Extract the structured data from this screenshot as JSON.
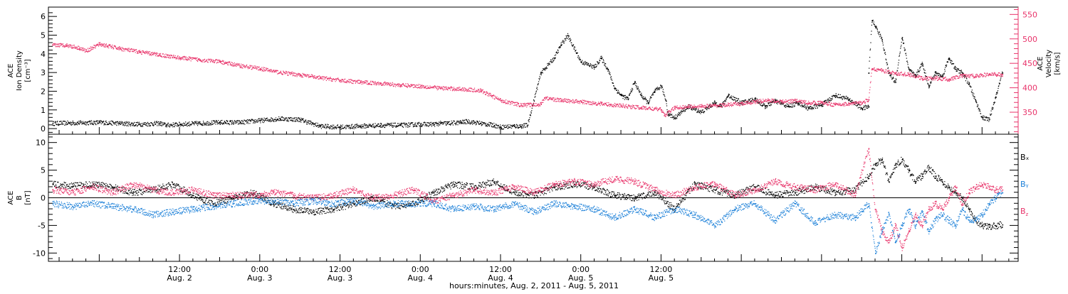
{
  "chart_data": [
    {
      "type": "scatter",
      "panel": "top",
      "ylabel_left": [
        "ACE",
        "Ion Density",
        "[cm⁻³]"
      ],
      "ylabel_right": [
        "ACE",
        "Velocity",
        "[km/s]"
      ],
      "yticks_left": [
        "0",
        "1",
        "2",
        "3",
        "4",
        "5",
        "6"
      ],
      "ylim_left": [
        -0.3,
        6.5
      ],
      "yticks_right": [
        "350",
        "400",
        "450",
        "500",
        "550"
      ],
      "ylim_right": [
        305,
        565
      ],
      "grid": false,
      "series": [
        {
          "axis": "left",
          "color": "#000000",
          "x": [
            -7,
            0,
            3,
            6,
            9,
            10,
            12,
            15,
            18,
            21,
            24,
            27,
            30,
            33,
            36,
            39,
            42,
            45,
            48,
            50,
            51,
            52,
            54,
            55,
            57,
            59,
            60,
            62,
            63,
            64,
            66,
            68,
            69,
            70,
            72,
            74,
            75,
            76,
            77,
            78,
            79,
            80,
            81,
            82,
            83,
            84,
            84.7,
            85,
            86,
            88,
            90,
            92,
            93,
            94,
            96,
            98,
            99.5,
            101,
            103,
            104.5,
            106,
            108,
            110,
            112,
            114,
            115
          ],
          "y": [
            0.3,
            0.35,
            0.3,
            0.25,
            0.3,
            0.2,
            0.25,
            0.3,
            0.35,
            0.35,
            0.45,
            0.55,
            0.5,
            0.15,
            0.1,
            0.15,
            0.2,
            0.2,
            0.25,
            0.25,
            0.3,
            0.3,
            0.35,
            0.4,
            0.3,
            0.2,
            0.1,
            0.15,
            0.15,
            0.2,
            3.0,
            3.8,
            4.5,
            5.0,
            3.6,
            3.3,
            3.8,
            3.2,
            2.2,
            1.8,
            1.6,
            2.5,
            1.8,
            1.4,
            2.0,
            2.3,
            1.5,
            0.8,
            0.6,
            1.2,
            0.9,
            1.4,
            1.2,
            1.8,
            1.4,
            1.6,
            1.2,
            1.5,
            1.2,
            1.4,
            1.1,
            1.3,
            1.8,
            1.6,
            1.1,
            1.2
          ]
        },
        {
          "axis": "left",
          "color": "#000000",
          "x": [
            115,
            115.5,
            116,
            117,
            118,
            119,
            120,
            121,
            122,
            123,
            124,
            125,
            126,
            127,
            128,
            129,
            130,
            131,
            132,
            133,
            134,
            135
          ],
          "y": [
            3.0,
            5.8,
            5.5,
            4.8,
            3.0,
            2.5,
            4.9,
            3.2,
            2.8,
            3.5,
            2.3,
            3.0,
            2.8,
            3.8,
            3.2,
            3.0,
            2.4,
            1.5,
            0.6,
            0.5,
            1.7,
            3.0
          ]
        },
        {
          "axis": "right",
          "color": "#e8336a",
          "x": [
            -7,
            -5,
            -3,
            -2,
            0,
            3,
            6,
            9,
            12,
            15,
            18,
            21,
            24,
            27,
            30,
            33,
            36,
            39,
            42,
            45,
            48,
            51,
            54,
            57,
            60,
            63,
            66,
            66.5,
            69,
            72,
            75,
            78,
            81,
            84,
            84.5,
            86,
            88,
            90,
            92,
            94,
            96,
            98,
            100,
            102,
            104,
            106,
            108,
            110,
            112,
            114,
            115,
            115.5,
            117,
            119,
            121,
            123,
            125,
            127,
            129,
            131,
            133,
            135
          ],
          "y": [
            488,
            488,
            482,
            476,
            490,
            481,
            474,
            468,
            462,
            458,
            454,
            446,
            440,
            432,
            427,
            421,
            416,
            412,
            410,
            406,
            404,
            400,
            398,
            395,
            375,
            365,
            367,
            380,
            375,
            372,
            368,
            364,
            360,
            356,
            344,
            360,
            362,
            363,
            364,
            366,
            368,
            372,
            375,
            372,
            374,
            370,
            370,
            366,
            368,
            370,
            376,
            440,
            436,
            430,
            428,
            420,
            420,
            418,
            425,
            425,
            428,
            428
          ]
        }
      ]
    },
    {
      "type": "scatter",
      "panel": "bottom",
      "ylabel": [
        "ACE",
        "B",
        "[nT]"
      ],
      "yticks": [
        "-10",
        "-5",
        "0",
        "5",
        "10"
      ],
      "ylim": [
        -11.5,
        11.5
      ],
      "zero_line": true,
      "legend": [
        "Bₓ",
        "Bᵧ",
        "B_z"
      ],
      "legend_position": "right",
      "grid": false,
      "series": [
        {
          "name": "Bₓ",
          "color": "#000000",
          "x": [
            -7,
            -4,
            -1,
            2,
            5,
            8,
            11,
            14,
            17,
            20,
            23,
            26,
            29,
            32,
            35,
            38,
            41,
            44,
            47,
            50,
            53,
            56,
            59,
            62,
            65,
            68,
            71,
            74,
            77,
            80,
            83,
            86,
            89,
            92,
            95,
            98,
            101,
            104,
            107,
            110,
            113,
            115,
            116,
            117,
            118,
            119,
            120,
            121,
            122,
            123,
            124,
            125,
            126,
            127,
            128,
            129,
            130,
            131,
            132,
            133,
            134,
            135
          ],
          "y": [
            2.5,
            2.2,
            2.5,
            2.0,
            1.0,
            1.5,
            2.5,
            0.5,
            -1.0,
            0.0,
            1.0,
            -1.0,
            -2.0,
            -2.5,
            -2.0,
            -1.0,
            0.0,
            -1.5,
            -1.0,
            1.0,
            2.5,
            2.0,
            3.0,
            1.0,
            0.5,
            2.0,
            2.5,
            2.0,
            0.5,
            0.0,
            1.0,
            -2.0,
            2.5,
            1.5,
            0.5,
            2.0,
            0.5,
            1.0,
            2.0,
            1.0,
            1.5,
            4.0,
            6.0,
            7.0,
            3.0,
            6.0,
            7.0,
            5.0,
            3.0,
            4.0,
            5.5,
            4.0,
            3.0,
            2.0,
            1.0,
            0.0,
            -2.0,
            -4.0,
            -5.0,
            -5.2,
            -5.0,
            -4.8
          ]
        },
        {
          "name": "Bᵧ",
          "color": "#1a7fd8",
          "x": [
            -7,
            -4,
            -1,
            2,
            5,
            8,
            11,
            14,
            17,
            20,
            23,
            26,
            29,
            32,
            35,
            38,
            41,
            44,
            47,
            50,
            53,
            56,
            59,
            62,
            65,
            68,
            71,
            74,
            77,
            80,
            83,
            86,
            89,
            92,
            95,
            98,
            101,
            104,
            107,
            110,
            113,
            115,
            116,
            117,
            118,
            119,
            120,
            121,
            122,
            123,
            124,
            125,
            126,
            127,
            128,
            129,
            130,
            131,
            132,
            133,
            134,
            135
          ],
          "y": [
            -1.0,
            -1.5,
            -1.0,
            -1.5,
            -2.0,
            -3.0,
            -2.5,
            -2.0,
            -1.5,
            -1.0,
            -0.5,
            -0.5,
            -1.0,
            -0.5,
            -1.0,
            -0.5,
            -1.5,
            -1.0,
            -1.0,
            -1.0,
            -2.0,
            -1.5,
            -2.0,
            -1.0,
            -2.5,
            -1.0,
            -1.5,
            -2.0,
            -3.5,
            -2.0,
            -3.5,
            -2.0,
            -3.0,
            -5.0,
            -2.0,
            -1.0,
            -4.0,
            -1.0,
            -4.5,
            -3.0,
            -3.5,
            -1.0,
            -10.0,
            -6.0,
            -3.0,
            -8.0,
            -5.0,
            -2.0,
            -5.0,
            -2.5,
            -6.0,
            -4.0,
            -3.0,
            -4.0,
            -5.0,
            -2.0,
            -4.0,
            -4.0,
            -3.0,
            -1.0,
            0.0,
            1.0
          ]
        },
        {
          "name": "B_z",
          "color": "#e8336a",
          "x": [
            -7,
            -4,
            -1,
            2,
            5,
            8,
            11,
            14,
            17,
            20,
            23,
            26,
            29,
            32,
            35,
            38,
            41,
            44,
            47,
            50,
            53,
            56,
            59,
            62,
            65,
            68,
            71,
            74,
            77,
            80,
            83,
            86,
            89,
            92,
            95,
            98,
            101,
            104,
            107,
            110,
            113,
            115,
            116,
            117,
            118,
            119,
            120,
            121,
            122,
            123,
            124,
            125,
            126,
            127,
            128,
            129,
            130,
            131,
            132,
            133,
            134,
            135
          ],
          "y": [
            1.5,
            1.0,
            2.0,
            1.0,
            2.5,
            1.5,
            1.0,
            1.5,
            0.5,
            0.5,
            0.5,
            1.0,
            0.5,
            0.0,
            0.5,
            1.5,
            0.0,
            0.5,
            1.5,
            -0.5,
            0.5,
            1.5,
            1.0,
            2.0,
            1.0,
            2.5,
            3.0,
            2.5,
            3.5,
            3.0,
            1.5,
            0.5,
            2.0,
            2.5,
            0.5,
            1.5,
            3.0,
            2.0,
            1.5,
            2.5,
            0.5,
            9.0,
            -2.0,
            -6.0,
            -8.0,
            -5.0,
            -9.0,
            -6.0,
            -3.0,
            -5.0,
            -2.0,
            -1.0,
            -2.0,
            0.0,
            2.0,
            -1.0,
            1.0,
            2.0,
            2.5,
            2.0,
            1.5,
            1.5
          ]
        }
      ]
    }
  ],
  "x_axis": {
    "range_hours": [
      -7.6,
      137.4
    ],
    "ticks": [
      {
        "x": 12,
        "time": "12:00",
        "date": "Aug. 2"
      },
      {
        "x": 24,
        "time": "0:00",
        "date": "Aug. 3"
      },
      {
        "x": 36,
        "time": "12:00",
        "date": "Aug. 3"
      },
      {
        "x": 48,
        "time": "0:00",
        "date": "Aug. 4"
      },
      {
        "x": 60,
        "time": "12:00",
        "date": "Aug. 4"
      },
      {
        "x": 72,
        "time": "0:00",
        "date": "Aug. 5"
      },
      {
        "x": 84,
        "time": "12:00",
        "date": "Aug. 5"
      }
    ],
    "xlabel": "hours:minutes, Aug.  2, 2011 - Aug.  5, 2011"
  }
}
